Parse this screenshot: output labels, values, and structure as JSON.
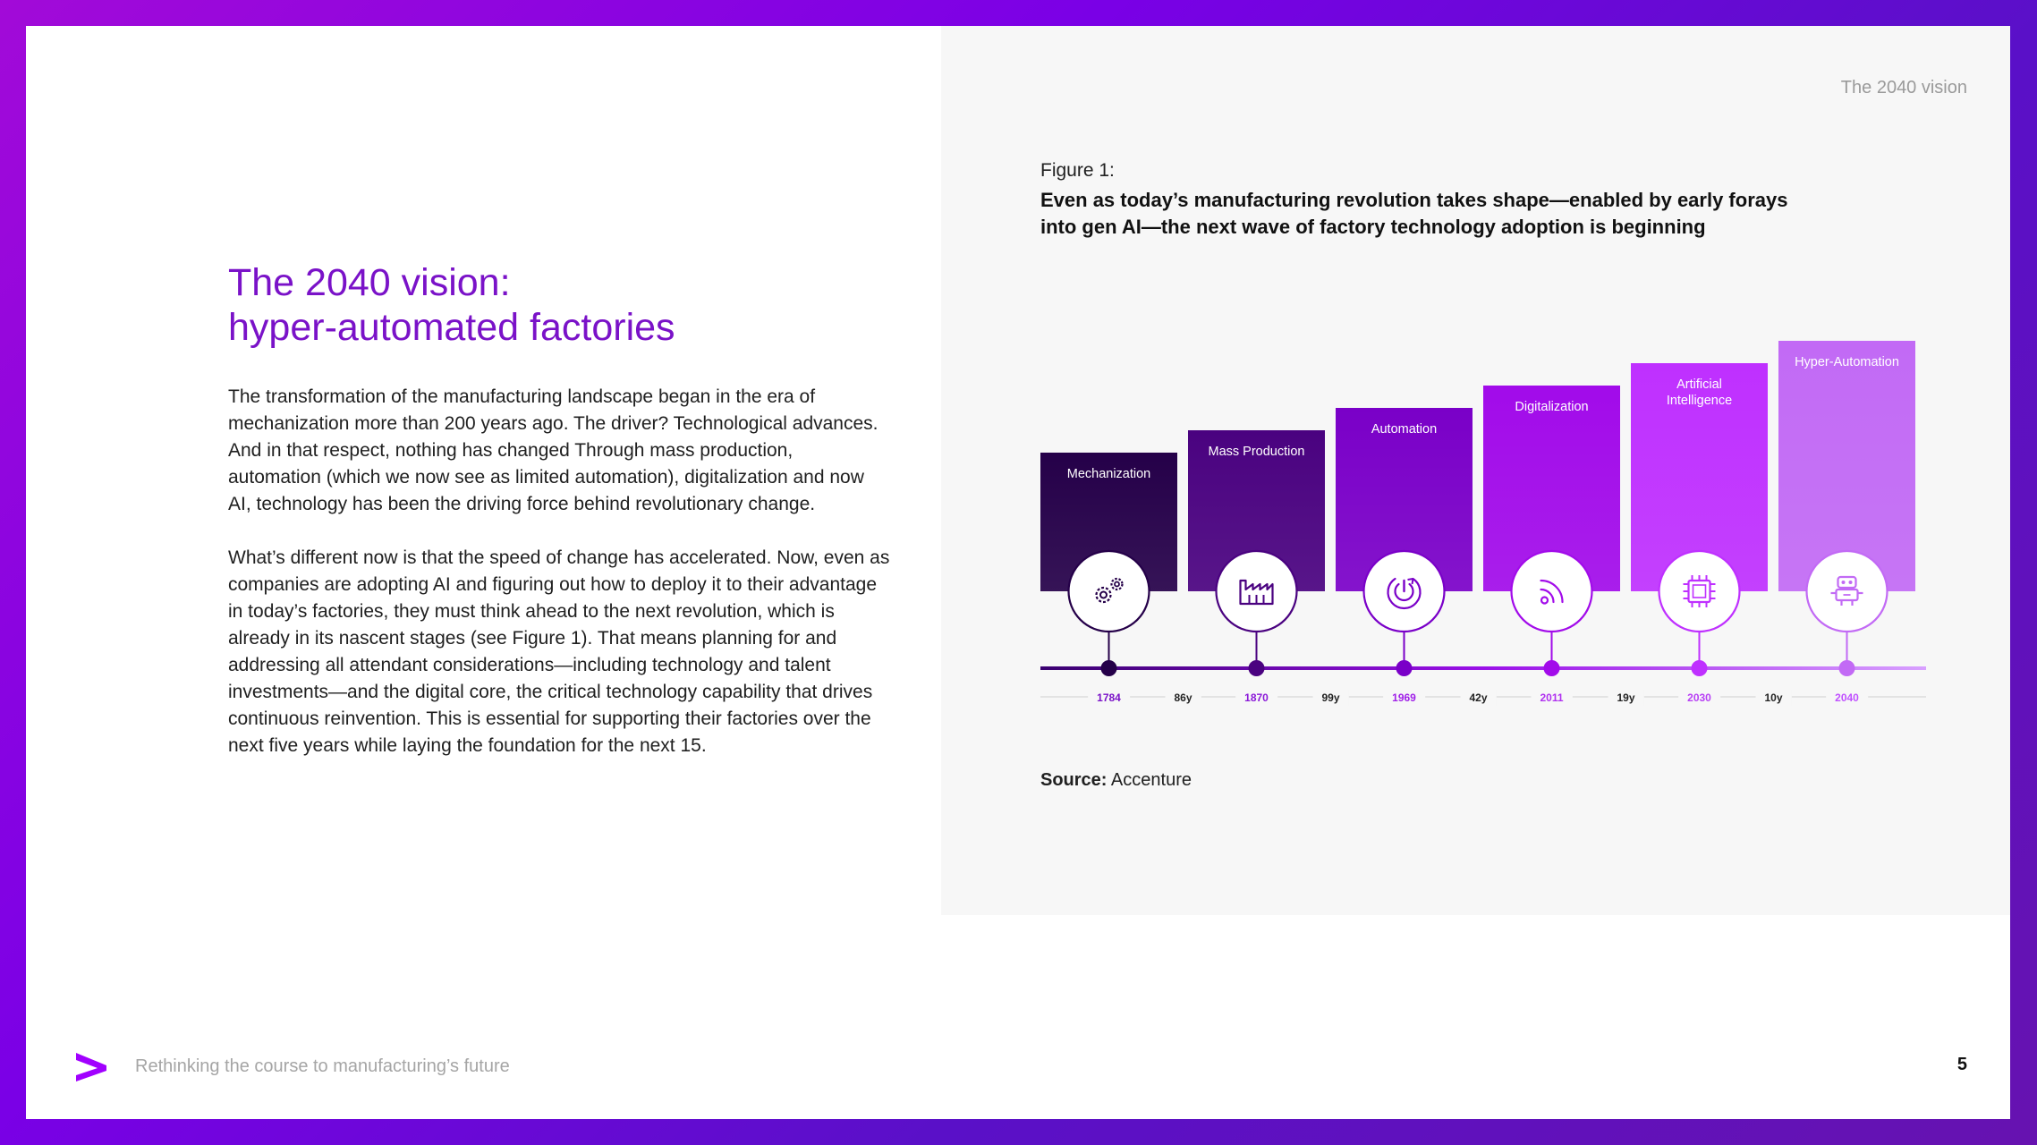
{
  "running_head": "The 2040 vision",
  "heading": {
    "line1": "The 2040 vision:",
    "line2": "hyper-automated factories"
  },
  "body": {
    "paragraph1": "The transformation of the manufacturing landscape began in the era of mechanization more than 200 years ago. The driver? Technological advances. And in that respect, nothing has changed Through mass production, automation (which we now see as limited automation), digitalization and now AI, technology has been the driving force behind revolutionary change.",
    "paragraph2": "What’s different now is that the speed of change has accelerated. Now, even as companies are adopting AI and figuring out how to deploy it to their advantage in today’s factories, they must think ahead to the next revolution, which is already in its nascent stages (see Figure 1). That means planning for and addressing all attendant considerations—including technology and talent investments—and the digital core, the critical technology capability that drives continuous reinvention. This is essential for supporting their factories over the next five years while laying the foundation for the next 15."
  },
  "figure": {
    "label": "Figure 1:",
    "title": "Even as today’s manufacturing revolution takes shape—enabled by early forays into gen AI—the next wave of factory technology adoption is beginning",
    "source_label": "Source:",
    "source_value": "Accenture"
  },
  "chart_data": {
    "type": "bar",
    "categories": [
      "Mechanization",
      "Mass Production",
      "Automation",
      "Digitalization",
      "Artificial Intelligence",
      "Hyper-Automation"
    ],
    "years": [
      "1784",
      "1870",
      "1969",
      "2011",
      "2030",
      "2040"
    ],
    "gaps": [
      "86y",
      "99y",
      "42y",
      "19y",
      "10y"
    ],
    "icons": [
      "gears-icon",
      "factory-icon",
      "power-cycle-icon",
      "signal-icon",
      "ai-chip-icon",
      "robot-icon"
    ],
    "colors": [
      "#250049",
      "#4a0280",
      "#7a00c8",
      "#a20bea",
      "#bf30ff",
      "#c26af5"
    ],
    "year_colors": [
      "#7a12c8",
      "#8a18d8",
      "#a020e8",
      "#b030f0",
      "#b840f5",
      "#c050ff"
    ]
  },
  "footer": {
    "text": "Rethinking the course to manufacturing’s future",
    "page_number": "5"
  },
  "brand": {
    "accent": "#a100ff"
  }
}
